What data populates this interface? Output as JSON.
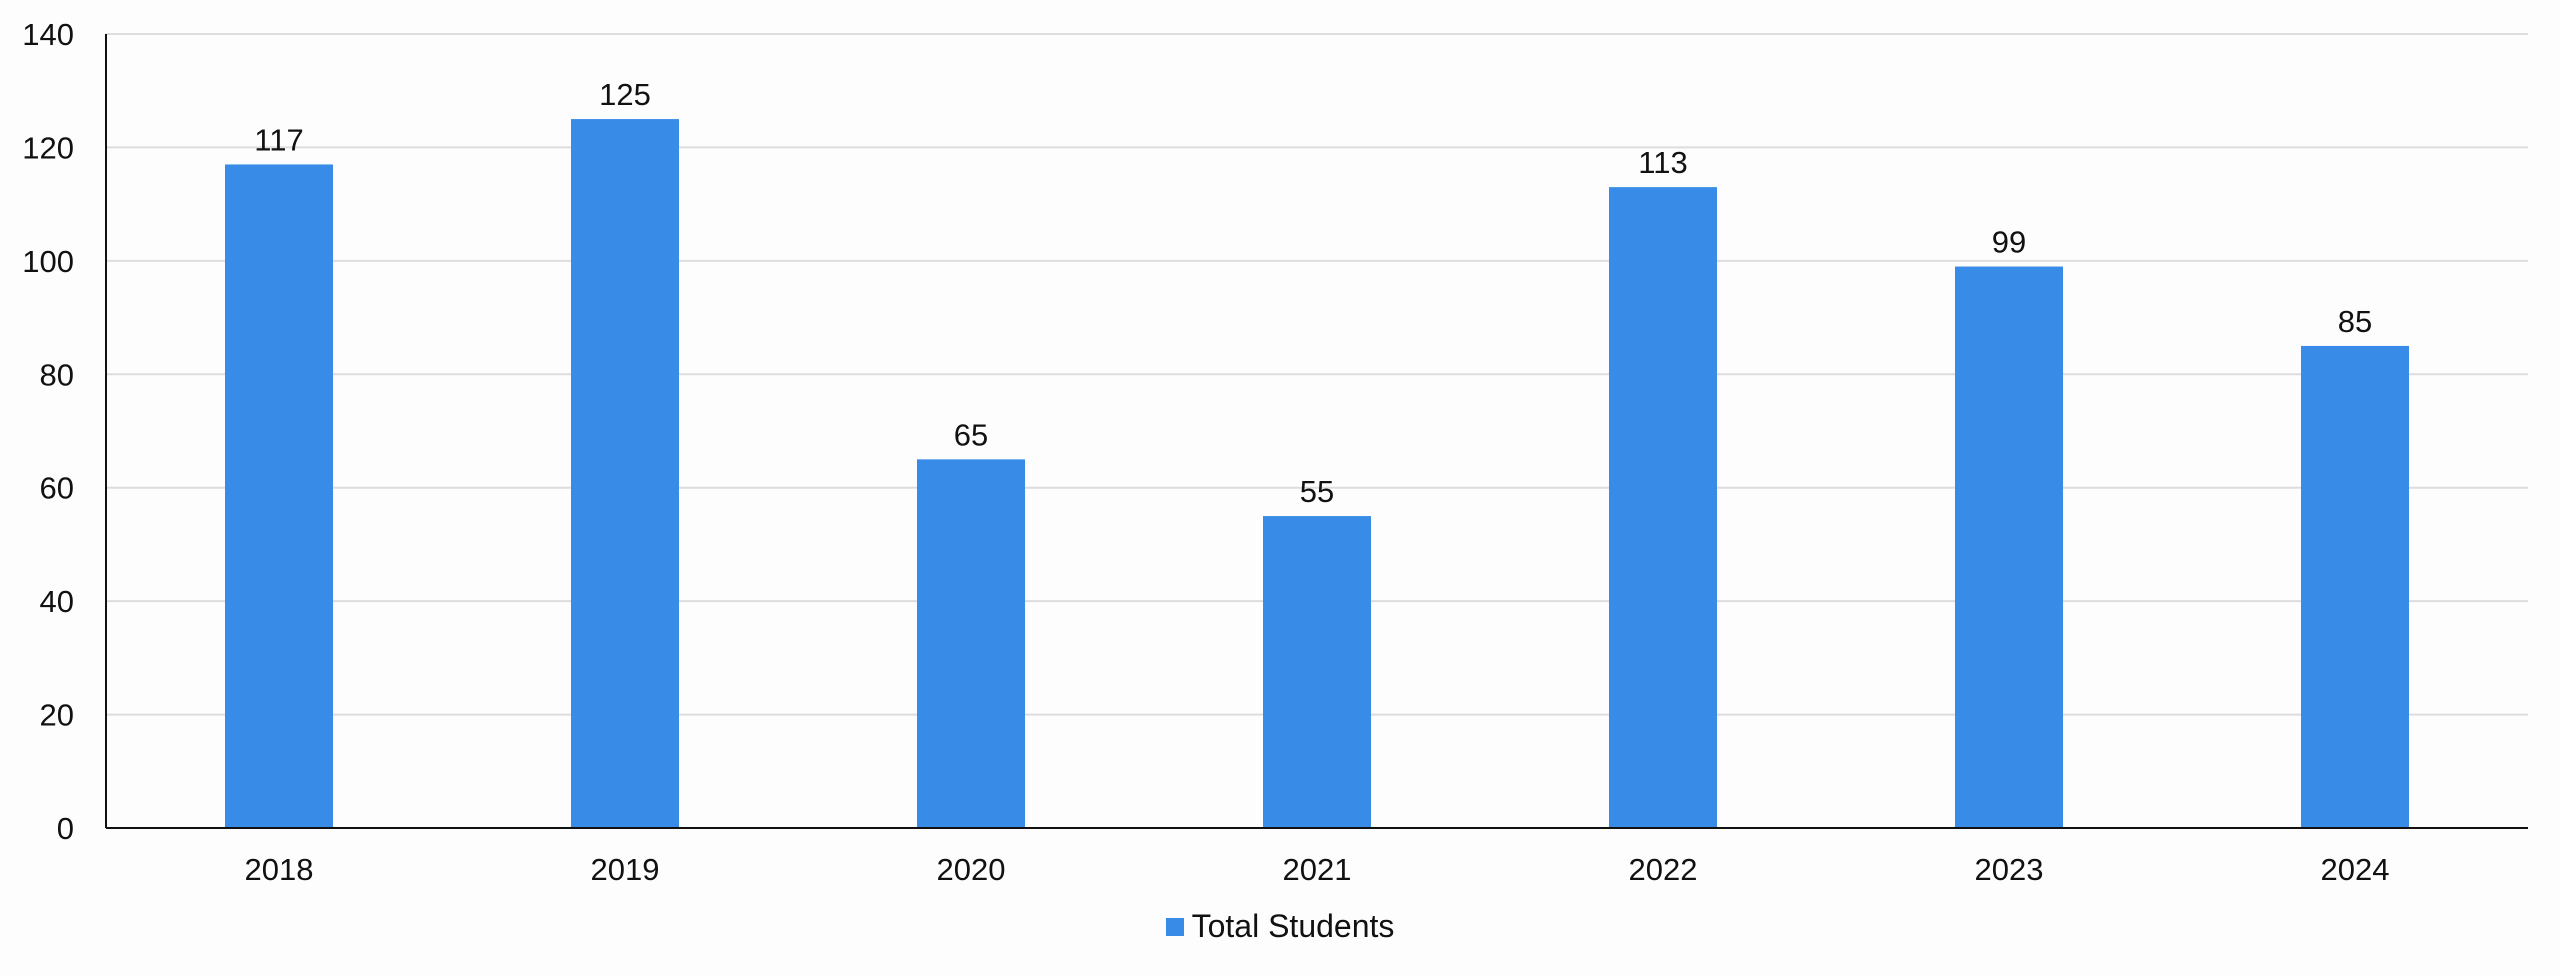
{
  "chart_data": {
    "type": "bar",
    "categories": [
      "2018",
      "2019",
      "2020",
      "2021",
      "2022",
      "2023",
      "2024"
    ],
    "series": [
      {
        "name": "Total Students",
        "values": [
          117,
          125,
          65,
          55,
          113,
          99,
          85
        ]
      }
    ],
    "ylim": [
      0,
      140
    ],
    "yticks": [
      0,
      20,
      40,
      60,
      80,
      100,
      120,
      140
    ],
    "grid": true,
    "legend": "bottom",
    "colors": {
      "bar": "#388be6",
      "grid": "#dddddd",
      "axis": "#111111"
    }
  }
}
